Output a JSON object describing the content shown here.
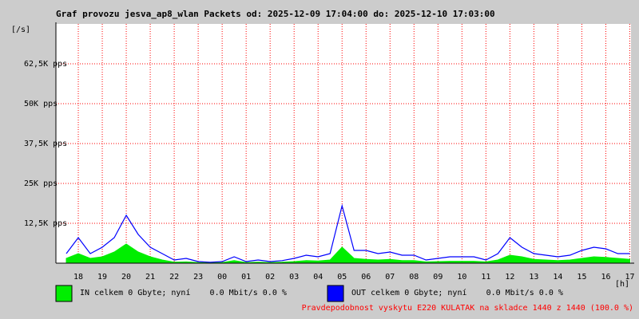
{
  "chart_data": {
    "type": "line",
    "title": "Graf provozu jesva_ap8_wlan Packets od: 2025-12-09 17:04:00 do: 2025-12-10 17:03:00",
    "y_unit": "[/s]",
    "x_unit": "[h]",
    "xlim": [
      17.0667,
      41.05
    ],
    "xticks": [
      18,
      19,
      20,
      21,
      22,
      23,
      {
        "value": 24,
        "label": "00"
      },
      {
        "value": 25,
        "label": "01"
      },
      {
        "value": 26,
        "label": "02"
      },
      {
        "value": 27,
        "label": "03"
      },
      {
        "value": 28,
        "label": "04"
      },
      {
        "value": 29,
        "label": "05"
      },
      {
        "value": 30,
        "label": "06"
      },
      {
        "value": 31,
        "label": "07"
      },
      {
        "value": 32,
        "label": "08"
      },
      {
        "value": 33,
        "label": "09"
      },
      {
        "value": 34,
        "label": "10"
      },
      {
        "value": 35,
        "label": "11"
      },
      {
        "value": 36,
        "label": "12"
      },
      {
        "value": 37,
        "label": "13"
      },
      {
        "value": 38,
        "label": "14"
      },
      {
        "value": 39,
        "label": "15"
      },
      {
        "value": 40,
        "label": "16"
      },
      {
        "value": 41,
        "label": "17"
      }
    ],
    "ylim": [
      0,
      75000
    ],
    "yticks": [
      {
        "value": 12500,
        "label": "12,5K pps"
      },
      {
        "value": 25000,
        "label": "25K pps"
      },
      {
        "value": 37500,
        "label": "37,5K pps"
      },
      {
        "value": 50000,
        "label": "50K pps"
      },
      {
        "value": 62500,
        "label": "62,5K pps"
      }
    ],
    "grid": true,
    "x": [
      17.5,
      18,
      18.5,
      19,
      19.5,
      20,
      20.5,
      21,
      21.5,
      22,
      22.5,
      23,
      23.5,
      24,
      24.5,
      25,
      25.5,
      26,
      26.5,
      27,
      27.5,
      28,
      28.5,
      29,
      29.5,
      30,
      30.5,
      31,
      31.5,
      32,
      32.5,
      33,
      33.5,
      34,
      34.5,
      35,
      35.5,
      36,
      36.5,
      37,
      37.5,
      38,
      38.5,
      39,
      39.5,
      40,
      40.5,
      41
    ],
    "series": [
      {
        "name": "IN celkem 0 Gbyte; nyní    0.0 Mbit/s 0.0 %",
        "color": "#00ee00",
        "style": "area",
        "values": [
          1500,
          3000,
          1500,
          2000,
          3500,
          6000,
          3500,
          2000,
          1000,
          300,
          400,
          200,
          100,
          200,
          800,
          200,
          300,
          200,
          300,
          500,
          800,
          700,
          1000,
          5000,
          1500,
          1200,
          1000,
          1200,
          800,
          800,
          400,
          500,
          600,
          600,
          600,
          400,
          1000,
          2500,
          2000,
          1200,
          1000,
          800,
          1000,
          1500,
          2000,
          1800,
          1500,
          1200
        ]
      },
      {
        "name": "OUT celkem 0 Gbyte; nyní    0.0 Mbit/s 0.0 %",
        "color": "#0000ff",
        "style": "line",
        "values": [
          3000,
          8000,
          3000,
          5000,
          8000,
          15000,
          9000,
          5000,
          3000,
          1000,
          1500,
          500,
          300,
          500,
          2000,
          500,
          1000,
          500,
          800,
          1500,
          2500,
          2000,
          3000,
          18000,
          4000,
          4000,
          3000,
          3500,
          2500,
          2500,
          1000,
          1500,
          2000,
          2000,
          2000,
          1000,
          3000,
          8000,
          5000,
          3000,
          2500,
          2000,
          2500,
          4000,
          5000,
          4500,
          3000,
          3000
        ]
      }
    ],
    "footer": "Pravdepodobnost vyskytu E220 KULATAK na skladce 1440 z 1440 (100.0 %)",
    "footer_color": "#ff0000"
  }
}
